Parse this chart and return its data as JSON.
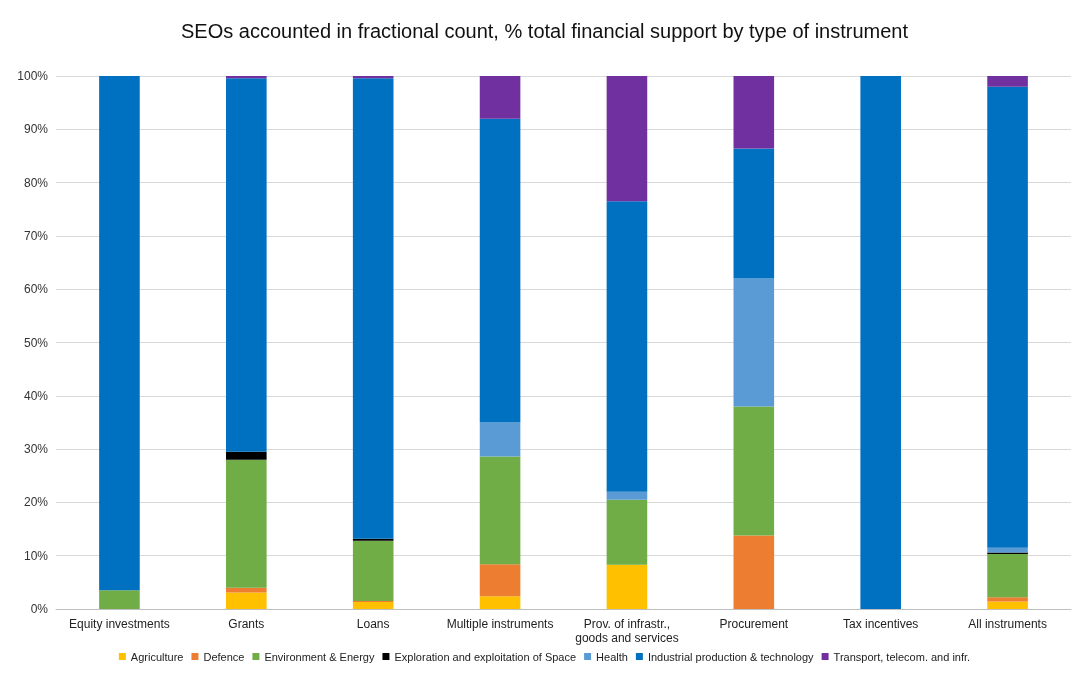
{
  "chart_data": {
    "type": "bar",
    "stacked": true,
    "title": "SEOs accounted in fractional count, % total financial support by type of instrument",
    "categories": [
      "Equity investments",
      "Grants",
      "Loans",
      "Multiple instruments",
      "Prov. of infrastr.,\ngoods and services",
      "Procurement",
      "Tax incentives",
      "All instruments"
    ],
    "series": [
      {
        "name": "Agriculture",
        "color": "#ffc000",
        "values": [
          0,
          3.1,
          1.3,
          2.4,
          8.3,
          0,
          0,
          1.4
        ]
      },
      {
        "name": "Defence",
        "color": "#ed7d31",
        "values": [
          0,
          0.9,
          0.2,
          6.0,
          0,
          13.8,
          0,
          0.8
        ]
      },
      {
        "name": "Environment & Energy",
        "color": "#70ad47",
        "values": [
          3.5,
          24.0,
          11.3,
          20.2,
          12.2,
          24.2,
          0,
          8.1
        ]
      },
      {
        "name": "Exploration and exploitation of Space",
        "color": "#000000",
        "values": [
          0,
          1.5,
          0.4,
          0,
          0,
          0,
          0,
          0.3
        ]
      },
      {
        "name": "Health",
        "color": "#5b9bd5",
        "values": [
          0,
          0,
          0,
          6.4,
          1.5,
          24.0,
          0,
          0.9
        ]
      },
      {
        "name": "Industrial production & technology",
        "color": "#0070c0",
        "values": [
          96.5,
          70.1,
          86.4,
          57.0,
          54.5,
          24.4,
          100,
          86.5
        ]
      },
      {
        "name": "Transport, telecom. and infr.",
        "color": "#7030a0",
        "values": [
          0,
          0.4,
          0.4,
          8.0,
          23.5,
          13.6,
          0,
          2.0
        ]
      }
    ],
    "ylim": [
      0,
      100
    ],
    "yticks": [
      {
        "value": 0,
        "label": "0%"
      },
      {
        "value": 10,
        "label": "10%"
      },
      {
        "value": 20,
        "label": "20%"
      },
      {
        "value": 30,
        "label": "30%"
      },
      {
        "value": 40,
        "label": "40%"
      },
      {
        "value": 50,
        "label": "50%"
      },
      {
        "value": 60,
        "label": "60%"
      },
      {
        "value": 70,
        "label": "70%"
      },
      {
        "value": 80,
        "label": "80%"
      },
      {
        "value": 90,
        "label": "90%"
      },
      {
        "value": 100,
        "label": "100%"
      }
    ],
    "grid": "y",
    "legend": "bottom"
  }
}
